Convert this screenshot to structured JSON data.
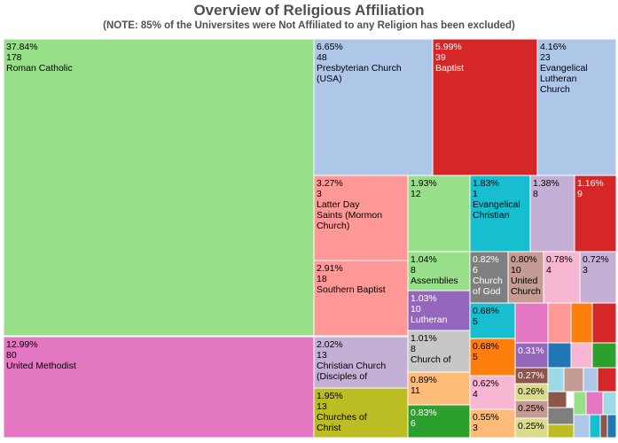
{
  "chart_data": {
    "type": "treemap",
    "title": "Overview of Religious Affiliation",
    "subtitle": "(NOTE: 85% of the Universites were Not Affiliated to any Religion has been excluded)",
    "cells": [
      {
        "pct": "37.84%",
        "count": "178",
        "name": "Roman Catholic",
        "color": "#98df8a",
        "text": "#000000"
      },
      {
        "pct": "12.99%",
        "count": "80",
        "name": "United Methodist",
        "color": "#e377c2",
        "text": "#000000"
      },
      {
        "pct": "6.65%",
        "count": "48",
        "name": "Presbyterian Church (USA)",
        "color": "#aec7e8",
        "text": "#000000"
      },
      {
        "pct": "5.99%",
        "count": "39",
        "name": "Baptist",
        "color": "#d62728",
        "text": "#ffffff"
      },
      {
        "pct": "4.16%",
        "count": "23",
        "name": "Evangelical Lutheran Church",
        "color": "#aec7e8",
        "text": "#000000"
      },
      {
        "pct": "3.27%",
        "count": "3",
        "name": "Latter Day Saints (Mormon Church)",
        "color": "#ff9896",
        "text": "#000000"
      },
      {
        "pct": "2.91%",
        "count": "18",
        "name": "Southern Baptist",
        "color": "#ff9896",
        "text": "#000000"
      },
      {
        "pct": "2.02%",
        "count": "13",
        "name": "Christian Church (Disciples of Christ)",
        "color": "#c5b0d5",
        "text": "#000000"
      },
      {
        "pct": "1.95%",
        "count": "13",
        "name": "Churches of Christ",
        "color": "#bcbd22",
        "text": "#000000"
      },
      {
        "pct": "1.93%",
        "count": "12",
        "name": "",
        "color": "#98df8a",
        "text": "#000000"
      },
      {
        "pct": "1.83%",
        "count": "1",
        "name": "Evangelical Christian",
        "color": "#17becf",
        "text": "#000000"
      },
      {
        "pct": "1.38%",
        "count": "8",
        "name": "",
        "color": "#c5b0d5",
        "text": "#000000"
      },
      {
        "pct": "1.16%",
        "count": "9",
        "name": "",
        "color": "#d62728",
        "text": "#ffffff"
      },
      {
        "pct": "1.04%",
        "count": "8",
        "name": "Assemblies",
        "color": "#98df8a",
        "text": "#000000"
      },
      {
        "pct": "1.03%",
        "count": "10",
        "name": "Lutheran",
        "color": "#9467bd",
        "text": "#ffffff"
      },
      {
        "pct": "1.01%",
        "count": "8",
        "name": "Church of",
        "color": "#c7c7c7",
        "text": "#000000"
      },
      {
        "pct": "0.89%",
        "count": "11",
        "name": "",
        "color": "#ffbb78",
        "text": "#000000"
      },
      {
        "pct": "0.83%",
        "count": "6",
        "name": "",
        "color": "#2ca02c",
        "text": "#ffffff"
      },
      {
        "pct": "0.82%",
        "count": "6",
        "name": "Church of God",
        "color": "#7f7f7f",
        "text": "#ffffff"
      },
      {
        "pct": "0.80%",
        "count": "10",
        "name": "United Church",
        "color": "#c49c94",
        "text": "#000000"
      },
      {
        "pct": "0.78%",
        "count": "4",
        "name": "",
        "color": "#f7b6d2",
        "text": "#000000"
      },
      {
        "pct": "0.72%",
        "count": "3",
        "name": "",
        "color": "#c5b0d5",
        "text": "#000000"
      },
      {
        "pct": "0.68%",
        "count": "5",
        "name": "",
        "color": "#17becf",
        "text": "#000000"
      },
      {
        "pct": "0.68%",
        "count": "5",
        "name": "",
        "color": "#ff7f0e",
        "text": "#000000"
      },
      {
        "pct": "0.62%",
        "count": "4",
        "name": "",
        "color": "#f7b6d2",
        "text": "#000000"
      },
      {
        "pct": "0.55%",
        "count": "3",
        "name": "",
        "color": "#ffbb78",
        "text": "#000000"
      },
      {
        "pct": "0.31%",
        "count": "",
        "name": "",
        "color": "#9467bd",
        "text": "#ffffff"
      },
      {
        "pct": "0.27%",
        "count": "",
        "name": "",
        "color": "#8c564b",
        "text": "#ffffff"
      },
      {
        "pct": "0.26%",
        "count": "",
        "name": "",
        "color": "#dbdb8d",
        "text": "#000000"
      },
      {
        "pct": "0.25%",
        "count": "",
        "name": "",
        "color": "#c49c94",
        "text": "#000000"
      },
      {
        "pct": "0.25%",
        "count": "",
        "name": "",
        "color": "#dbdb8d",
        "text": "#000000"
      },
      {
        "pct": "",
        "count": "",
        "name": "",
        "color": "#e377c2",
        "text": "#000000"
      },
      {
        "pct": "",
        "count": "",
        "name": "",
        "color": "#ff9896",
        "text": "#000000"
      },
      {
        "pct": "",
        "count": "",
        "name": "",
        "color": "#ff7f0e",
        "text": "#000000"
      },
      {
        "pct": "",
        "count": "",
        "name": "",
        "color": "#d62728",
        "text": "#000000"
      },
      {
        "pct": "",
        "count": "",
        "name": "",
        "color": "#1f77b4",
        "text": "#000000"
      },
      {
        "pct": "",
        "count": "",
        "name": "",
        "color": "#f7b6d2",
        "text": "#000000"
      },
      {
        "pct": "",
        "count": "",
        "name": "",
        "color": "#2ca02c",
        "text": "#000000"
      },
      {
        "pct": "",
        "count": "",
        "name": "",
        "color": "#9edae5",
        "text": "#000000"
      },
      {
        "pct": "",
        "count": "",
        "name": "",
        "color": "#c49c94",
        "text": "#000000"
      },
      {
        "pct": "",
        "count": "",
        "name": "",
        "color": "#aec7e8",
        "text": "#000000"
      },
      {
        "pct": "",
        "count": "",
        "name": "",
        "color": "#d62728",
        "text": "#000000"
      },
      {
        "pct": "",
        "count": "",
        "name": "",
        "color": "#8c564b",
        "text": "#000000"
      },
      {
        "pct": "",
        "count": "",
        "name": "",
        "color": "#7f7f7f",
        "text": "#000000"
      },
      {
        "pct": "",
        "count": "",
        "name": "",
        "color": "#98df8a",
        "text": "#000000"
      },
      {
        "pct": "",
        "count": "",
        "name": "",
        "color": "#e377c2",
        "text": "#000000"
      },
      {
        "pct": "",
        "count": "",
        "name": "",
        "color": "#9edae5",
        "text": "#000000"
      },
      {
        "pct": "",
        "count": "",
        "name": "",
        "color": "#bcbd22",
        "text": "#000000"
      },
      {
        "pct": "",
        "count": "",
        "name": "",
        "color": "#aec7e8",
        "text": "#000000"
      },
      {
        "pct": "",
        "count": "",
        "name": "",
        "color": "#17becf",
        "text": "#000000"
      },
      {
        "pct": "",
        "count": "",
        "name": "",
        "color": "#8c564b",
        "text": "#000000"
      },
      {
        "pct": "",
        "count": "",
        "name": "",
        "color": "#1f77b4",
        "text": "#000000"
      }
    ]
  }
}
